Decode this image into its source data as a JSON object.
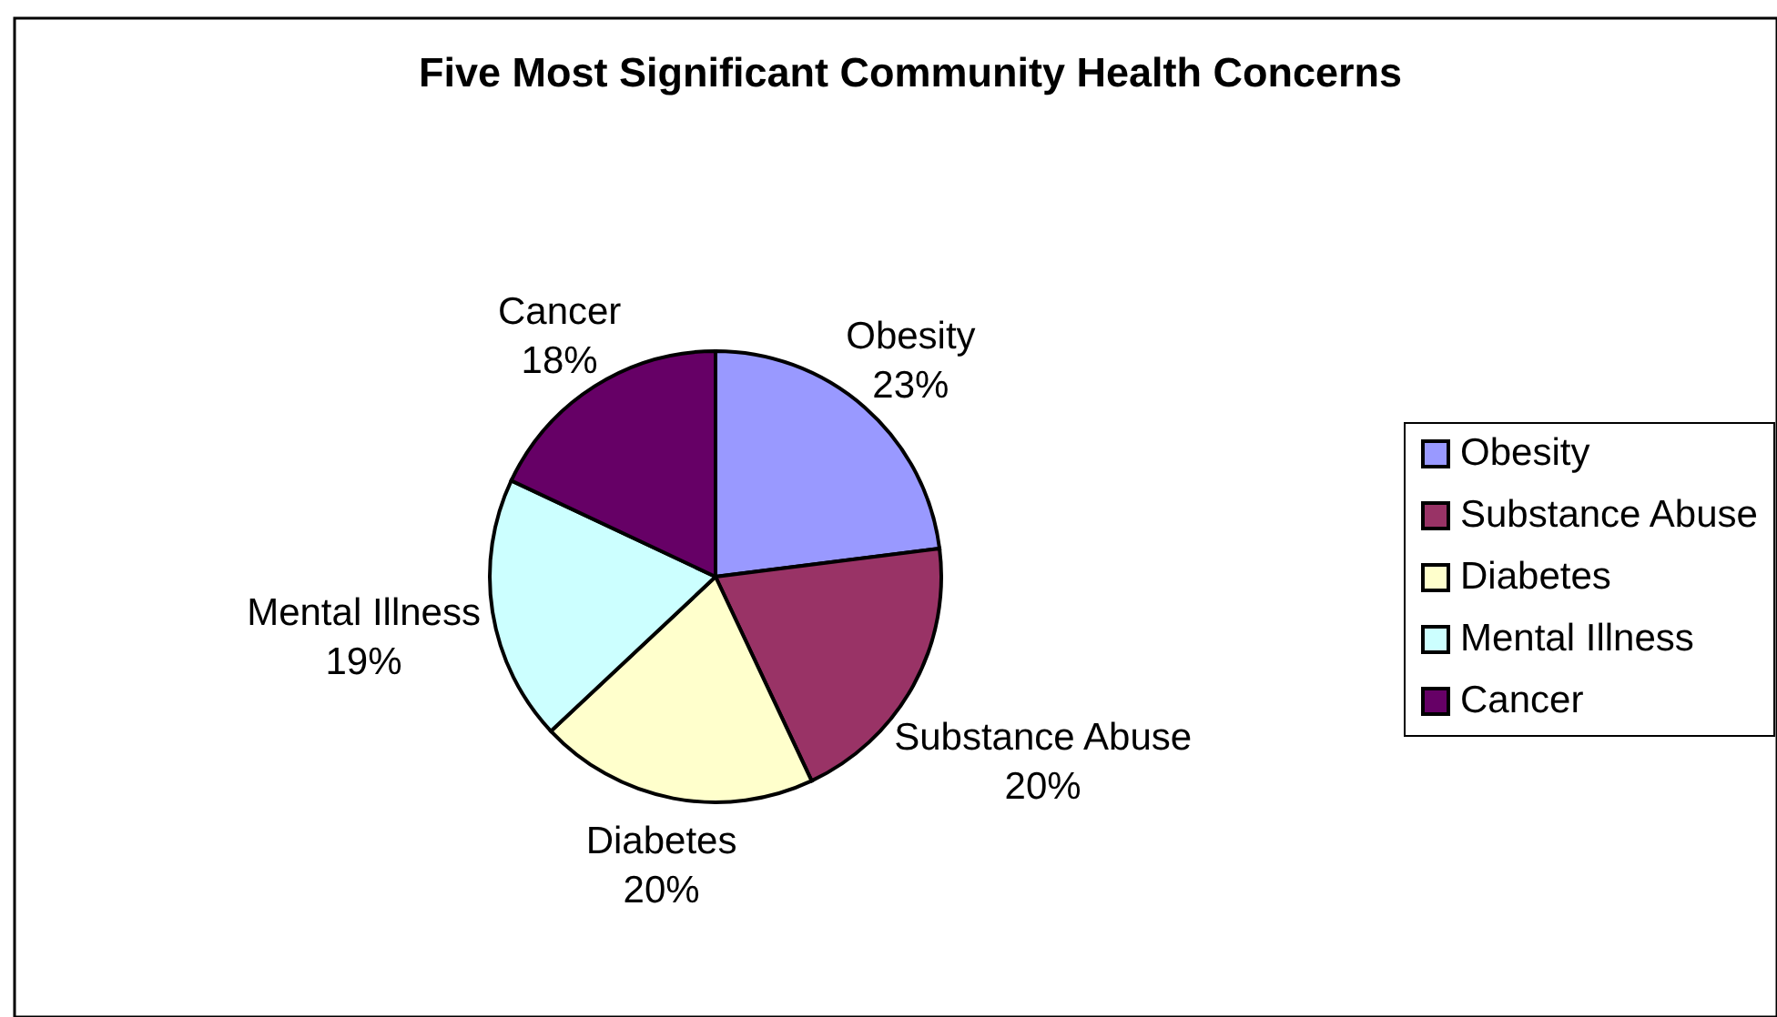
{
  "chart_data": {
    "type": "pie",
    "title": "Five Most Significant Community Health Concerns",
    "categories": [
      "Obesity",
      "Substance Abuse",
      "Diabetes",
      "Mental Illness",
      "Cancer"
    ],
    "values": [
      23,
      20,
      20,
      19,
      18
    ],
    "colors": [
      "#9999ff",
      "#993366",
      "#ffffcc",
      "#ccffff",
      "#660066"
    ],
    "value_labels": [
      "23%",
      "20%",
      "20%",
      "19%",
      "18%"
    ],
    "legend": "right"
  }
}
